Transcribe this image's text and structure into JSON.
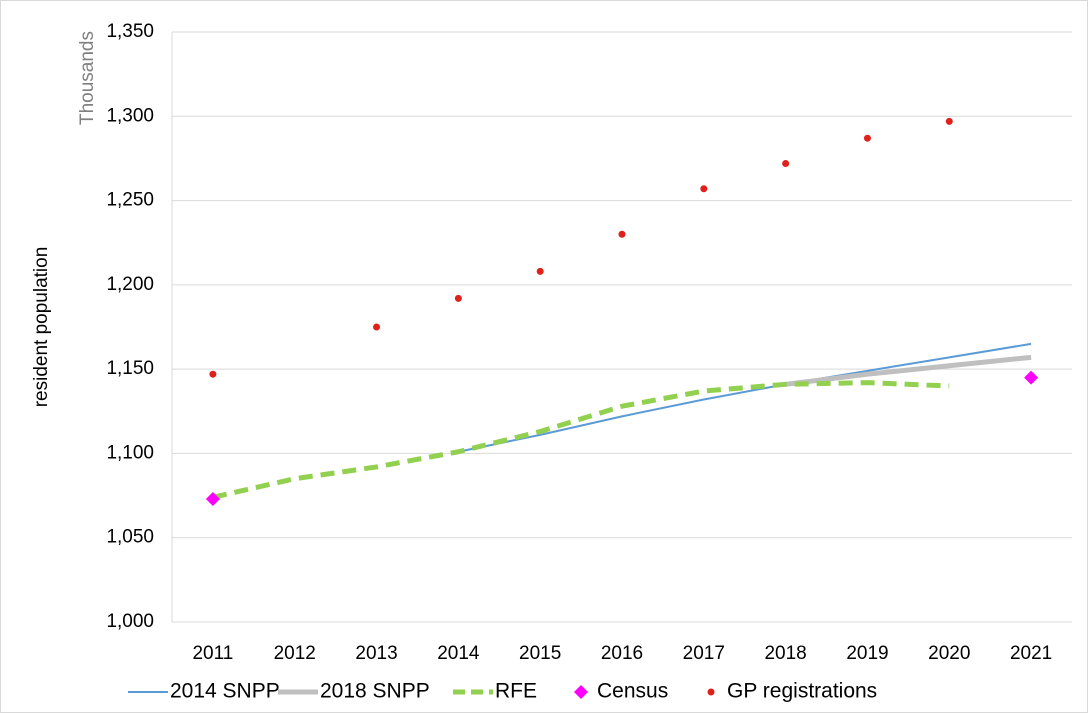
{
  "chart_data": {
    "type": "line",
    "y_axis_label": "resident population",
    "y_unit_label": "Thousands",
    "categories": [
      "2011",
      "2012",
      "2013",
      "2014",
      "2015",
      "2016",
      "2017",
      "2018",
      "2019",
      "2020",
      "2021"
    ],
    "series": [
      {
        "name": "2014 SNPP",
        "color": "#5b9bd5",
        "mark": "line",
        "width": 2,
        "values": [
          null,
          null,
          null,
          1101,
          1111,
          1122,
          1132,
          1141,
          1149,
          1157,
          1165
        ]
      },
      {
        "name": "2018 SNPP",
        "color": "#bfbfbf",
        "mark": "line",
        "width": 5,
        "values": [
          null,
          null,
          null,
          null,
          null,
          null,
          null,
          1141,
          1147,
          1152,
          1157
        ]
      },
      {
        "name": "RFE",
        "color": "#92d050",
        "mark": "dashed",
        "width": 5,
        "values": [
          1074,
          1085,
          1092,
          1101,
          1113,
          1128,
          1137,
          1141,
          1142,
          1140,
          null
        ]
      },
      {
        "name": "Census",
        "color": "#ff00ff",
        "mark": "diamond",
        "values": [
          1073,
          null,
          null,
          null,
          null,
          null,
          null,
          null,
          null,
          null,
          1145
        ]
      },
      {
        "name": "GP registrations",
        "color": "#e0201b",
        "mark": "dot",
        "values": [
          1147,
          null,
          1175,
          1192,
          1208,
          1230,
          1257,
          1272,
          1287,
          1297,
          null
        ]
      }
    ],
    "ylim": [
      1000,
      1350
    ],
    "yticks": [
      {
        "value": 1000,
        "label": "1,000"
      },
      {
        "value": 1050,
        "label": "1,050"
      },
      {
        "value": 1100,
        "label": "1,100"
      },
      {
        "value": 1150,
        "label": "1,150"
      },
      {
        "value": 1200,
        "label": "1,200"
      },
      {
        "value": 1250,
        "label": "1,250"
      },
      {
        "value": 1300,
        "label": "1,300"
      },
      {
        "value": 1350,
        "label": "1,350"
      }
    ],
    "grid": true,
    "legend": "bottom"
  }
}
